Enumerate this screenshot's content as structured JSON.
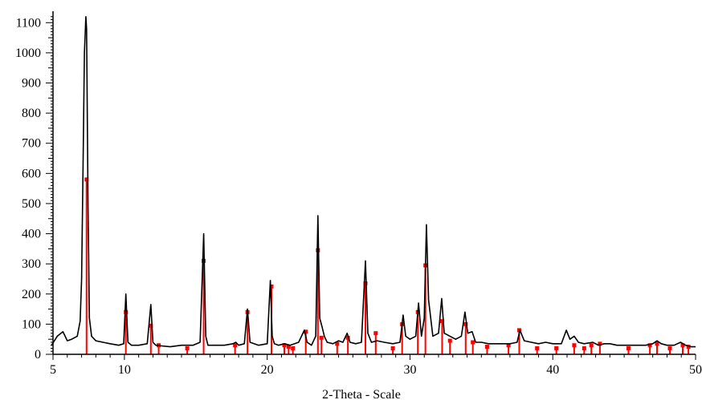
{
  "chart_data": {
    "type": "line",
    "title": "",
    "xlabel": "2-Theta - Scale",
    "ylabel": "",
    "xlim": [
      5,
      50
    ],
    "ylim": [
      0,
      1130
    ],
    "x_ticks": [
      5,
      10,
      20,
      30,
      40,
      50
    ],
    "y_ticks": [
      0,
      100,
      200,
      300,
      400,
      500,
      600,
      700,
      800,
      900,
      1000,
      1100
    ],
    "grid": false,
    "legend": "none",
    "colors": {
      "pattern": "#000000",
      "reference": "#ff0000"
    },
    "series": [
      {
        "color": "#000000",
        "x": [
          4.9,
          5.3,
          5.7,
          6.0,
          6.3,
          6.7,
          6.9,
          7.0,
          7.1,
          7.2,
          7.3,
          7.35,
          7.45,
          7.55,
          7.7,
          8.0,
          8.5,
          9.0,
          9.6,
          9.95,
          10.1,
          10.25,
          10.5,
          11.0,
          11.6,
          11.85,
          12.0,
          12.2,
          12.6,
          13.2,
          14.0,
          14.8,
          15.3,
          15.55,
          15.7,
          15.85,
          16.2,
          17.0,
          17.6,
          17.8,
          18.0,
          18.4,
          18.62,
          18.8,
          19.4,
          20.0,
          20.22,
          20.35,
          20.5,
          20.8,
          21.2,
          21.6,
          22.2,
          22.6,
          22.8,
          23.1,
          23.4,
          23.55,
          23.68,
          23.85,
          24.0,
          24.2,
          24.6,
          25.0,
          25.3,
          25.6,
          25.8,
          26.2,
          26.6,
          26.88,
          27.05,
          27.3,
          27.7,
          28.2,
          28.8,
          29.3,
          29.52,
          29.7,
          30.0,
          30.4,
          30.6,
          30.8,
          31.0,
          31.15,
          31.3,
          31.6,
          32.0,
          32.22,
          32.4,
          32.8,
          33.2,
          33.6,
          33.85,
          34.05,
          34.35,
          34.6,
          35.0,
          35.5,
          36.0,
          36.5,
          37.0,
          37.5,
          37.7,
          38.0,
          38.5,
          39.0,
          39.5,
          40.0,
          40.6,
          40.95,
          41.2,
          41.5,
          41.8,
          42.2,
          42.8,
          43.2,
          43.6,
          44.0,
          44.5,
          45.0,
          45.5,
          46.0,
          46.5,
          47.0,
          47.3,
          47.6,
          48.0,
          48.5,
          48.95,
          49.3,
          49.7,
          50.0
        ],
        "y": [
          30,
          60,
          75,
          45,
          50,
          60,
          110,
          250,
          600,
          1000,
          1120,
          1080,
          500,
          120,
          60,
          45,
          40,
          35,
          30,
          35,
          200,
          40,
          30,
          30,
          35,
          165,
          40,
          30,
          28,
          25,
          30,
          30,
          40,
          400,
          60,
          30,
          30,
          30,
          35,
          40,
          30,
          35,
          150,
          40,
          30,
          35,
          245,
          60,
          35,
          30,
          35,
          30,
          40,
          80,
          40,
          30,
          60,
          460,
          120,
          90,
          60,
          40,
          35,
          45,
          40,
          70,
          40,
          35,
          40,
          310,
          70,
          40,
          45,
          40,
          35,
          40,
          130,
          60,
          50,
          60,
          170,
          60,
          120,
          430,
          180,
          60,
          70,
          185,
          70,
          60,
          50,
          60,
          140,
          70,
          75,
          40,
          40,
          35,
          35,
          35,
          35,
          40,
          80,
          45,
          40,
          35,
          40,
          35,
          35,
          80,
          50,
          60,
          40,
          35,
          40,
          30,
          35,
          35,
          30,
          30,
          30,
          30,
          30,
          35,
          45,
          35,
          30,
          30,
          40,
          30,
          25,
          25
        ]
      }
    ],
    "reference_peaks": {
      "color": "#ff0000",
      "x": [
        7.35,
        10.1,
        11.85,
        12.4,
        14.4,
        15.55,
        17.75,
        18.62,
        20.3,
        21.2,
        21.5,
        21.8,
        22.7,
        23.55,
        23.8,
        24.9,
        25.65,
        26.88,
        27.6,
        28.8,
        29.45,
        30.55,
        31.08,
        32.25,
        32.8,
        33.9,
        34.4,
        35.4,
        36.9,
        37.65,
        38.9,
        40.25,
        41.5,
        42.2,
        42.7,
        43.3,
        45.3,
        46.8,
        47.3,
        48.2,
        49.1,
        49.5
      ],
      "y": [
        580,
        140,
        95,
        30,
        20,
        310,
        30,
        140,
        225,
        30,
        25,
        20,
        75,
        345,
        55,
        35,
        55,
        235,
        70,
        20,
        100,
        140,
        295,
        110,
        45,
        100,
        40,
        25,
        30,
        80,
        20,
        20,
        30,
        20,
        30,
        35,
        20,
        30,
        35,
        20,
        30,
        25
      ]
    }
  }
}
